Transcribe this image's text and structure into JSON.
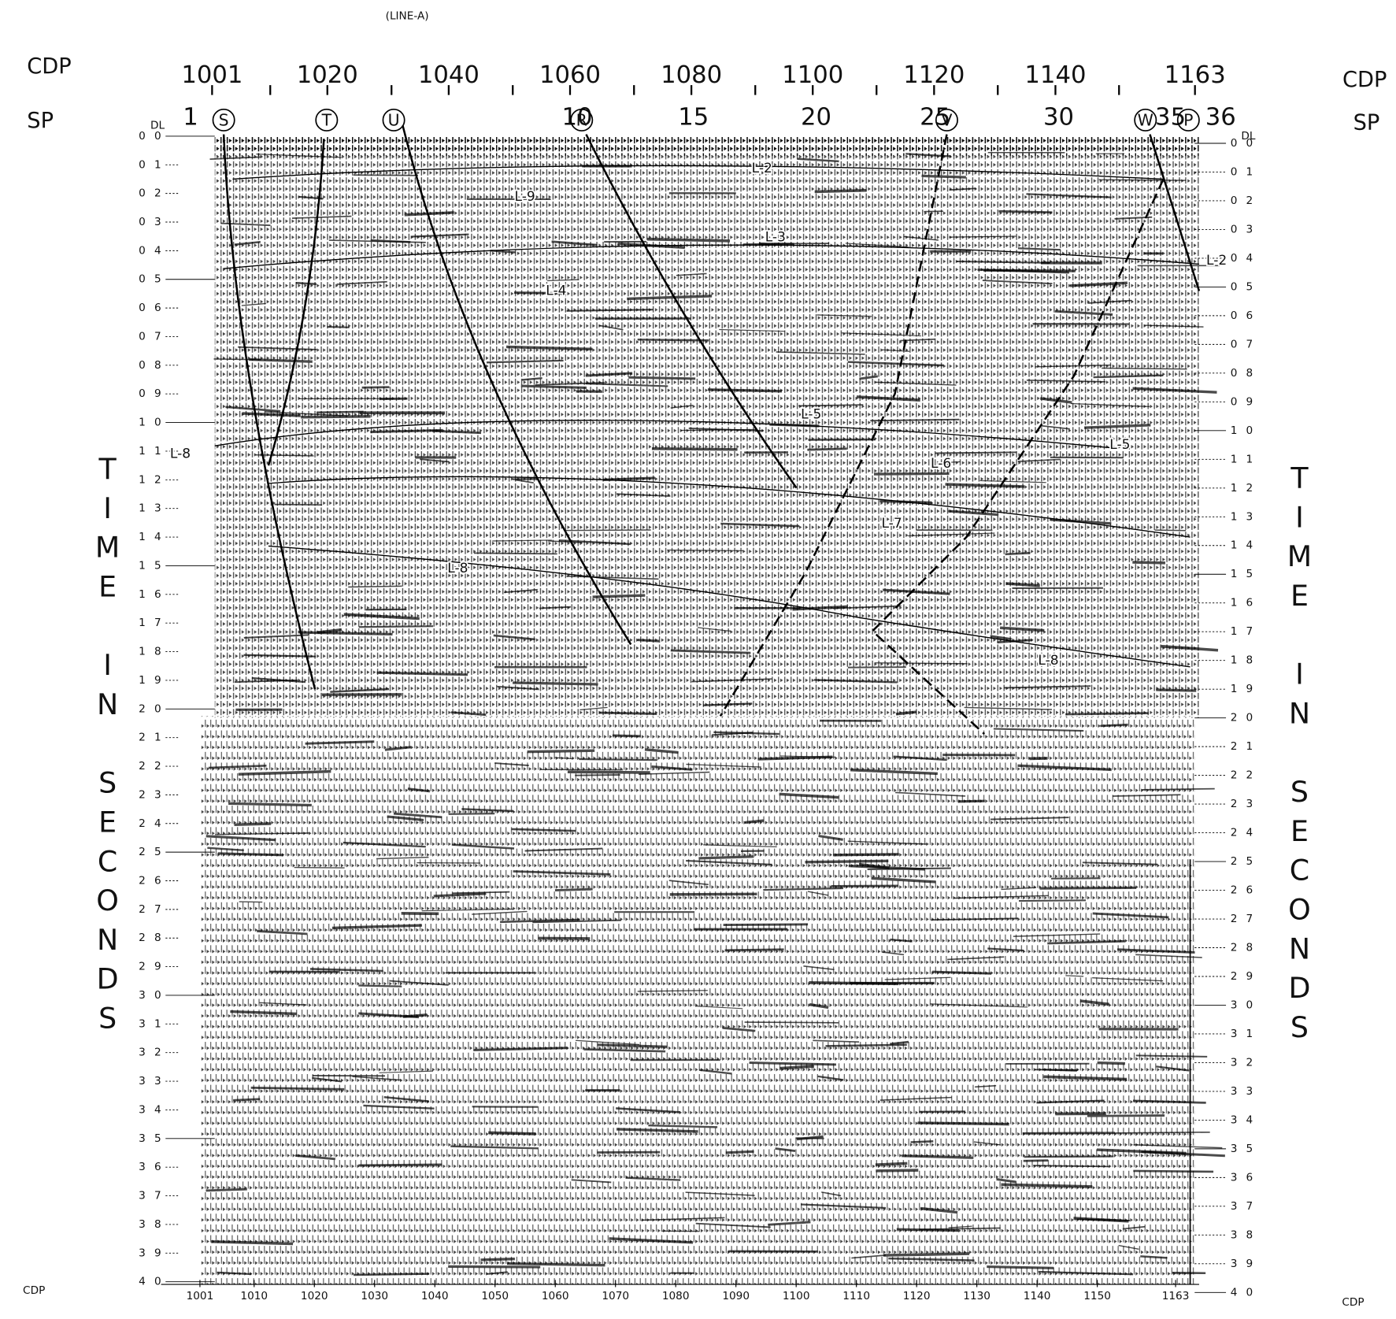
{
  "header": {
    "line_title": "(LINE-A)"
  },
  "top_axis": {
    "cdp_label_left": "CDP",
    "sp_label_left": "SP",
    "cdp_label_right": "CDP",
    "sp_label_right": "SP",
    "dl_left": "DL",
    "dl_right": "DL",
    "cdp": [
      1001,
      1020,
      1040,
      1060,
      1080,
      1100,
      1120,
      1140,
      1163
    ],
    "sp": [
      1,
      10,
      15,
      20,
      25,
      30,
      35,
      36
    ],
    "shotpoints": [
      "S",
      "T",
      "U",
      "R",
      "V",
      "W",
      "P"
    ]
  },
  "time_axis": {
    "title": "TIME IN SECONDS",
    "labels": [
      "0 0",
      "0 1",
      "0 2",
      "0 3",
      "0 4",
      "0 5",
      "0 6",
      "0 7",
      "0 8",
      "0 9",
      "1 0",
      "1 1",
      "1 2",
      "1 3",
      "1 4",
      "1 5",
      "1 6",
      "1 7",
      "1 8",
      "1 9",
      "2 0",
      "2 1",
      "2 2",
      "2 3",
      "2 4",
      "2 5",
      "2 6",
      "2 7",
      "2 8",
      "2 9",
      "3 0",
      "3 1",
      "3 2",
      "3 3",
      "3 4",
      "3 5",
      "3 6",
      "3 7",
      "3 8",
      "3 9",
      "4 0"
    ]
  },
  "horizons": [
    "L-8",
    "L-2",
    "L-8",
    "L-5",
    "L-3",
    "L-2",
    "L-4",
    "L-6",
    "L-7",
    "L-8",
    "L-9",
    "L-5"
  ],
  "bottom_axis": {
    "cdp_label_left": "CDP",
    "cdp_label_right": "CDP",
    "cdp": [
      1001,
      1010,
      1020,
      1030,
      1040,
      1050,
      1060,
      1070,
      1080,
      1090,
      1100,
      1110,
      1120,
      1130,
      1140,
      1150,
      1163
    ]
  }
}
